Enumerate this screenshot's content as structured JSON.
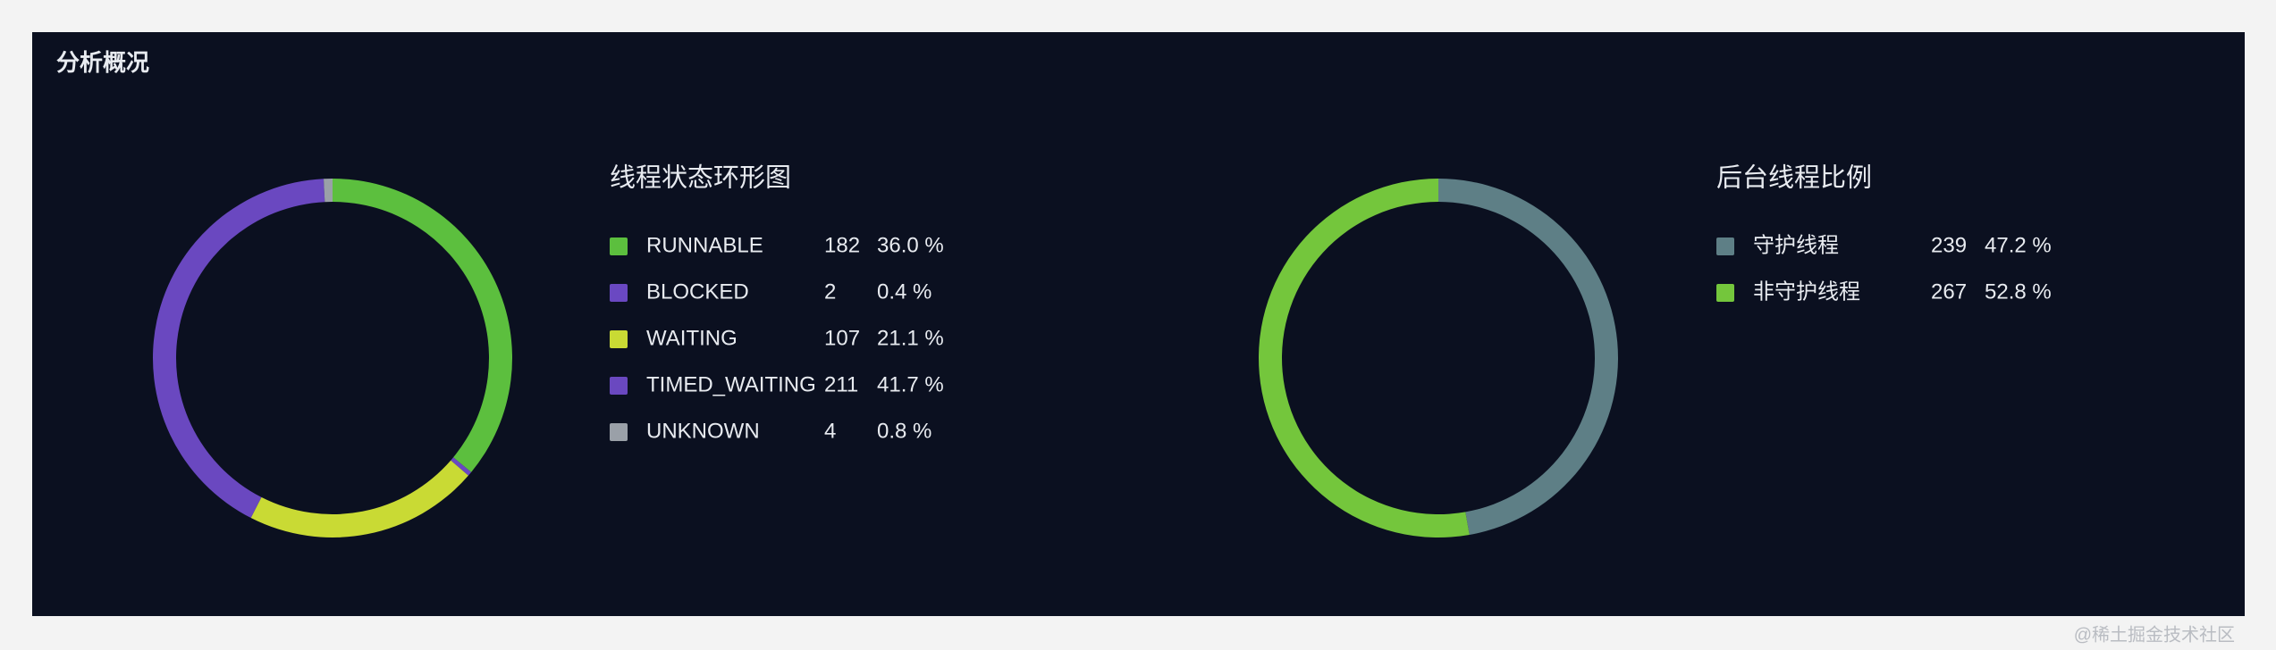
{
  "title": "分析概况",
  "watermark": "@稀土掘金技术社区",
  "chart_data": [
    {
      "type": "donut",
      "title": "线程状态环形图",
      "categories": [
        "RUNNABLE",
        "BLOCKED",
        "WAITING",
        "TIMED_WAITING",
        "UNKNOWN"
      ],
      "values": [
        182,
        2,
        107,
        211,
        4
      ],
      "percent_labels": [
        "36.0 %",
        "0.4 %",
        "21.1 %",
        "41.7 %",
        "0.8 %"
      ],
      "colors": [
        "#5cbf3e",
        "#6a48c2",
        "#c9da34",
        "#6a48c0",
        "#9aa0a8"
      ]
    },
    {
      "type": "donut",
      "title": "后台线程比例",
      "categories": [
        "守护线程",
        "非守护线程"
      ],
      "values": [
        239,
        267
      ],
      "percent_labels": [
        "47.2 %",
        "52.8 %"
      ],
      "colors": [
        "#5e7f86",
        "#74c63c"
      ]
    }
  ]
}
